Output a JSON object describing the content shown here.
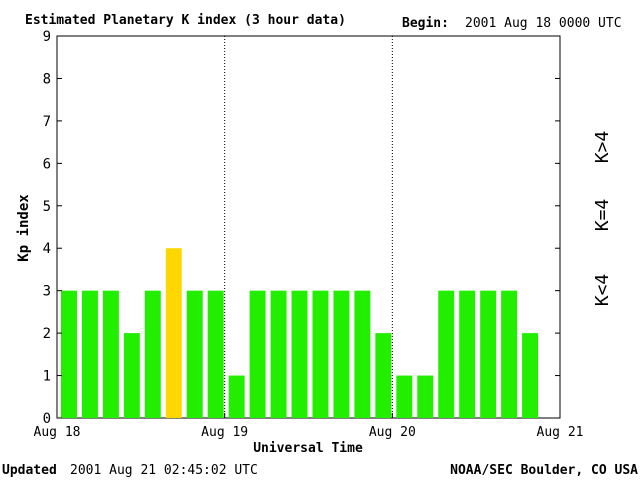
{
  "header": {
    "title": "Estimated Planetary K index (3 hour data)",
    "begin_label": "Begin:",
    "begin_value": "2001 Aug 18 0000 UTC"
  },
  "footer": {
    "updated_label": "Updated",
    "updated_value": "2001 Aug 21 02:45:02 UTC",
    "source": "NOAA/SEC Boulder, CO USA"
  },
  "legend": {
    "low": "K<4",
    "equal": "K=4",
    "high": "K>4"
  },
  "colors": {
    "low": "#22ee00",
    "equal": "#ffd700",
    "high": "#ff2200"
  },
  "chart_data": {
    "type": "bar",
    "title": "Estimated Planetary K index (3 hour data)",
    "xlabel": "Universal Time",
    "ylabel": "Kp index",
    "ylim": [
      0,
      9
    ],
    "yticks": [
      "0",
      "1",
      "2",
      "3",
      "4",
      "5",
      "6",
      "7",
      "8",
      "9"
    ],
    "xticks": [
      "Aug 18",
      "Aug 19",
      "Aug 20",
      "Aug 21"
    ],
    "day_separators": [
      "Aug 19",
      "Aug 20"
    ],
    "values": [
      3,
      3,
      3,
      2,
      3,
      4,
      3,
      3,
      1,
      3,
      3,
      3,
      3,
      3,
      3,
      2,
      1,
      1,
      3,
      3,
      3,
      3,
      2
    ],
    "grid": false
  }
}
